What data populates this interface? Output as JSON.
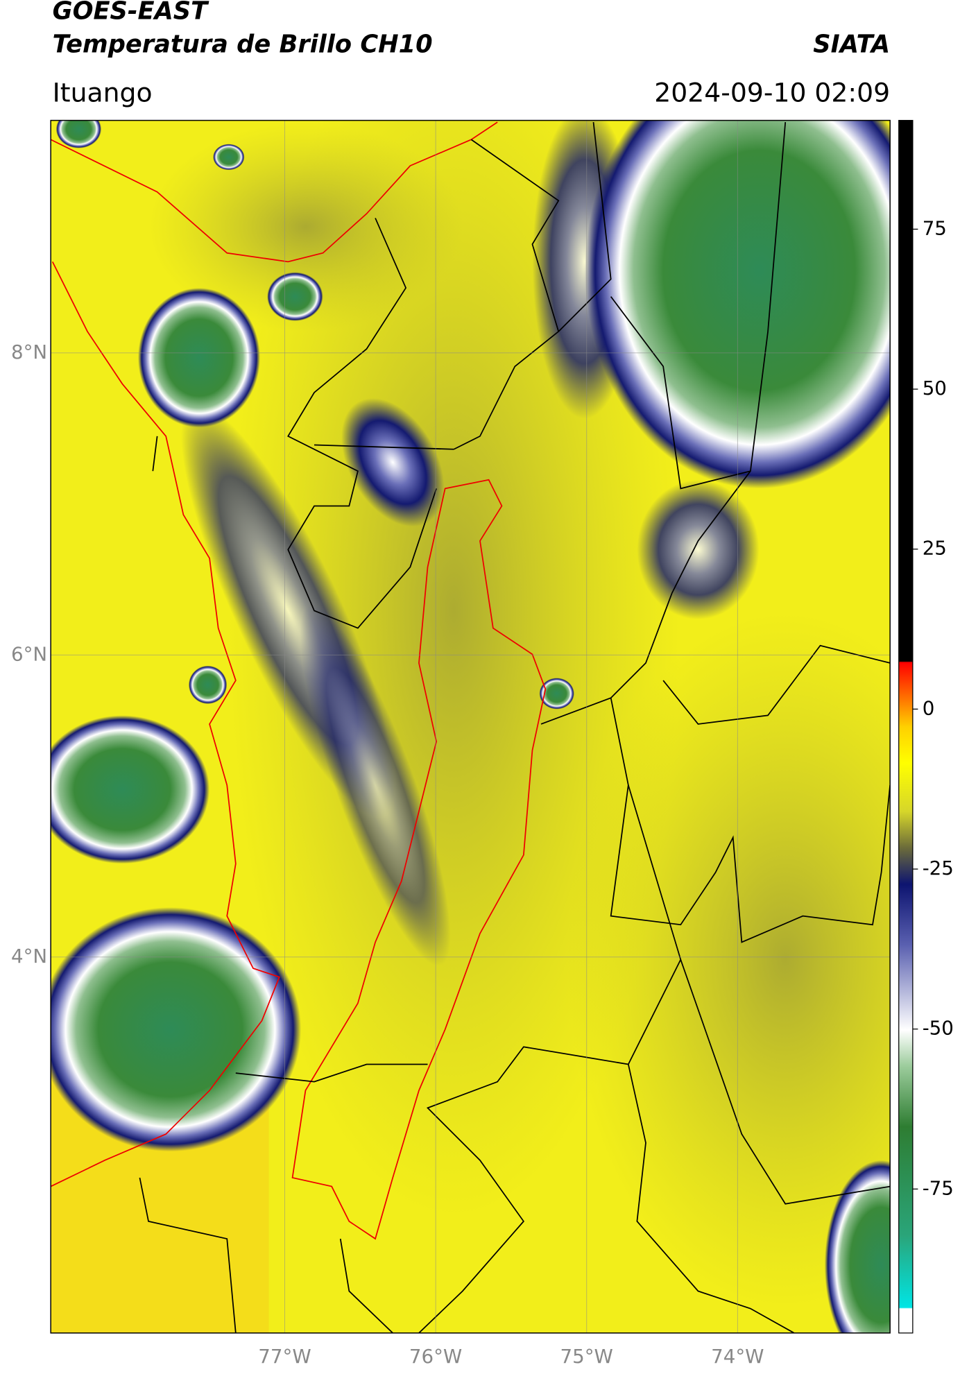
{
  "header": {
    "title_line1": "GOES-EAST",
    "title_line2": "Temperatura de Brillo CH10",
    "source": "SIATA",
    "location": "Ituango",
    "datetime": "2024-09-10 02:09"
  },
  "map": {
    "xlim": [
      -78.55,
      -72.99
    ],
    "ylim": [
      1.51,
      9.54
    ],
    "xticks": [
      {
        "value": -77,
        "label": "77°W"
      },
      {
        "value": -76,
        "label": "76°W"
      },
      {
        "value": -75,
        "label": "75°W"
      },
      {
        "value": -74,
        "label": "74°W"
      }
    ],
    "yticks": [
      {
        "value": 8,
        "label": "8°N"
      },
      {
        "value": 6,
        "label": "6°N"
      },
      {
        "value": 4,
        "label": "4°N"
      }
    ]
  },
  "colorbar": {
    "lim": [
      -97.5,
      92
    ],
    "ticks": [
      75,
      50,
      25,
      0,
      -25,
      -50,
      -75
    ]
  }
}
